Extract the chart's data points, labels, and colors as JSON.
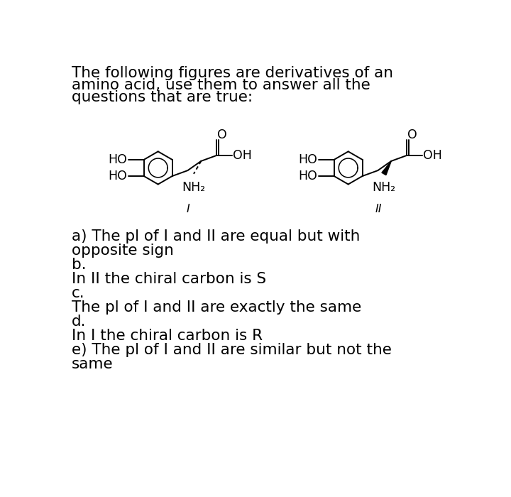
{
  "title_lines": [
    "The following figures are derivatives of an",
    "amino acid, use them to answer all the",
    "questions that are true:"
  ],
  "answer_lines": [
    "a) The pl of I and II are equal but with",
    "opposite sign",
    "b.",
    "In II the chiral carbon is S",
    "c.",
    "The pl of I and II are exactly the same",
    "d.",
    "In I the chiral carbon is R",
    "e) The pl of I and II are similar but not the",
    "same"
  ],
  "label_I": "I",
  "label_II": "II",
  "bg_color": "#ffffff",
  "text_color": "#000000",
  "title_fontsize": 15.5,
  "answer_fontsize": 15.5,
  "mol_color": "#000000"
}
